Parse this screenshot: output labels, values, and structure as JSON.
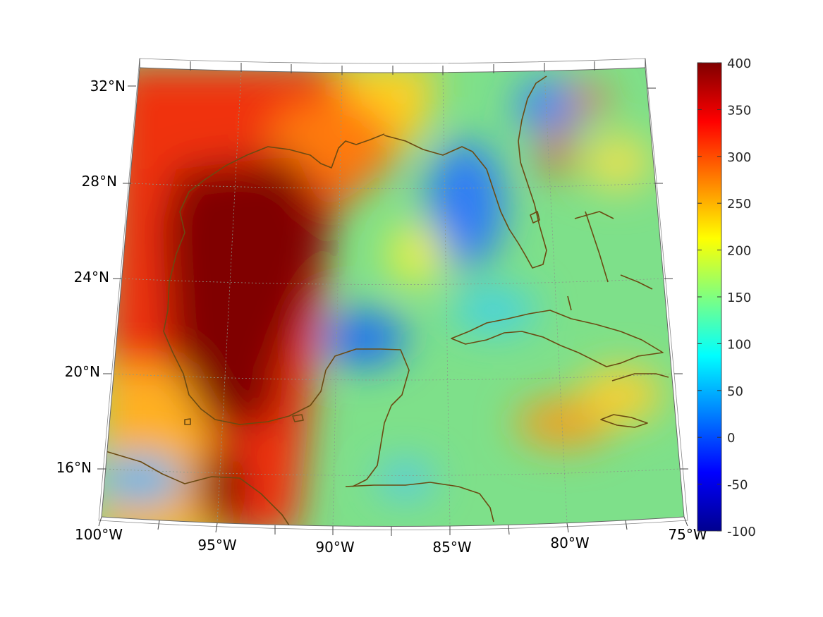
{
  "map": {
    "projection": "lambert-conic",
    "lon_range": [
      -100,
      -75
    ],
    "lat_range": [
      14,
      33
    ],
    "field_max_region": "western Gulf of Mexico",
    "colormap": "jet",
    "coastline_color": "#6b4a12",
    "grid": "dotted",
    "lon_ticks": [
      {
        "value": -100,
        "label": "100°W"
      },
      {
        "value": -95,
        "label": "95°W"
      },
      {
        "value": -90,
        "label": "90°W"
      },
      {
        "value": -85,
        "label": "85°W"
      },
      {
        "value": -80,
        "label": "80°W"
      },
      {
        "value": -75,
        "label": "75°W"
      }
    ],
    "lat_ticks": [
      {
        "value": 32,
        "label": "32°N"
      },
      {
        "value": 28,
        "label": "28°N"
      },
      {
        "value": 24,
        "label": "24°N"
      },
      {
        "value": 20,
        "label": "20°N"
      },
      {
        "value": 16,
        "label": "16°N"
      }
    ]
  },
  "colorbar": {
    "min": -100,
    "max": 400,
    "ticks": [
      "400",
      "350",
      "300",
      "250",
      "200",
      "150",
      "100",
      "50",
      "0",
      "-50",
      "-100"
    ]
  }
}
